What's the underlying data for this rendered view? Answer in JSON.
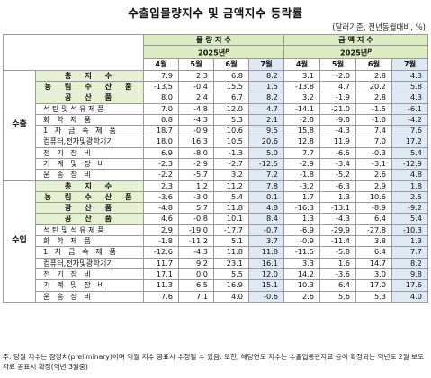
{
  "title": "수출입물량지수 및 금액지수 등락률",
  "unit": "(달러기준, 전년동월대비, %)",
  "headers": {
    "volume": "물 량 지 수",
    "value": "금 액 지 수",
    "year_label": "2025년",
    "year_sup": "p",
    "months": [
      "4월",
      "5월",
      "6월",
      "7월"
    ]
  },
  "sections": [
    {
      "name": "수출",
      "rows": [
        {
          "label": "총 지 수",
          "style": "bold",
          "vol": [
            "7.9",
            "2.3",
            "6.8",
            "8.2"
          ],
          "val": [
            "3.1",
            "-2.0",
            "2.8",
            "4.3"
          ]
        },
        {
          "label": "농 림 수 산 품",
          "style": "bold",
          "vol": [
            "-13.5",
            "-0.4",
            "15.5",
            "1.5"
          ],
          "val": [
            "-13.8",
            "4.7",
            "20.2",
            "5.8"
          ]
        },
        {
          "label": "공 산 품",
          "style": "bold",
          "vol": [
            "8.0",
            "2.4",
            "6.7",
            "8.2"
          ],
          "val": [
            "3.2",
            "-1.9",
            "2.8",
            "4.3"
          ]
        },
        {
          "label": "석탄및석유제품",
          "style": "item",
          "vol": [
            "7.0",
            "-4.8",
            "12.0",
            "4.7"
          ],
          "val": [
            "-14.1",
            "-21.0",
            "-1.5",
            "-6.1"
          ]
        },
        {
          "label": "화 학 제 품",
          "style": "item",
          "vol": [
            "0.8",
            "-4.3",
            "5.3",
            "2.1"
          ],
          "val": [
            "-2.8",
            "-9.8",
            "-1.0",
            "-4.2"
          ]
        },
        {
          "label": "1 차 금 속 제 품",
          "style": "item",
          "vol": [
            "18.7",
            "-0.9",
            "10.6",
            "9.5"
          ],
          "val": [
            "15.8",
            "-4.3",
            "7.4",
            "7.6"
          ]
        },
        {
          "label": "컴퓨터,전자및광학기기",
          "style": "wide",
          "vol": [
            "18.0",
            "16.3",
            "10.5",
            "20.6"
          ],
          "val": [
            "12.8",
            "11.9",
            "7.0",
            "17.2"
          ]
        },
        {
          "label": "전 기 장 비",
          "style": "item",
          "vol": [
            "6.9",
            "-8.0",
            "-1.3",
            "5.0"
          ],
          "val": [
            "7.7",
            "-6.5",
            "-0.3",
            "5.4"
          ]
        },
        {
          "label": "기 계 및 장 비",
          "style": "item",
          "vol": [
            "-2.3",
            "-2.9",
            "-2.7",
            "-12.5"
          ],
          "val": [
            "-2.9",
            "-3.4",
            "-3.1",
            "-12.9"
          ]
        },
        {
          "label": "운 송 장 비",
          "style": "item",
          "vol": [
            "-2.2",
            "-5.7",
            "3.2",
            "7.2"
          ],
          "val": [
            "-1.8",
            "-5.2",
            "2.6",
            "4.8"
          ]
        }
      ]
    },
    {
      "name": "수입",
      "rows": [
        {
          "label": "총 지 수",
          "style": "bold",
          "vol": [
            "2.3",
            "1.2",
            "11.2",
            "7.8"
          ],
          "val": [
            "-3.2",
            "-6.3",
            "2.9",
            "1.8"
          ]
        },
        {
          "label": "농 림 수 산 품",
          "style": "bold",
          "vol": [
            "-3.6",
            "-3.0",
            "5.4",
            "0.1"
          ],
          "val": [
            "1.7",
            "1.3",
            "10.6",
            "2.5"
          ]
        },
        {
          "label": "광 산 품",
          "style": "bold",
          "vol": [
            "-4.8",
            "5.7",
            "11.8",
            "4.8"
          ],
          "val": [
            "-16.3",
            "-13.1",
            "-8.9",
            "-9.2"
          ]
        },
        {
          "label": "공 산 품",
          "style": "bold",
          "vol": [
            "4.6",
            "-0.8",
            "10.1",
            "8.4"
          ],
          "val": [
            "1.3",
            "-4.3",
            "6.4",
            "5.4"
          ]
        },
        {
          "label": "석탄및석유제품",
          "style": "item",
          "vol": [
            "2.9",
            "-19.0",
            "-17.7",
            "-0.7"
          ],
          "val": [
            "-6.9",
            "-29.9",
            "-27.8",
            "-10.3"
          ]
        },
        {
          "label": "화 학 제 품",
          "style": "item",
          "vol": [
            "-1.8",
            "-11.2",
            "5.1",
            "3.7"
          ],
          "val": [
            "-0.9",
            "-11.4",
            "3.8",
            "1.3"
          ]
        },
        {
          "label": "1 차 금 속 제 품",
          "style": "item",
          "vol": [
            "-12.6",
            "-4.3",
            "11.8",
            "11.8"
          ],
          "val": [
            "-11.5",
            "-5.8",
            "6.4",
            "7.7"
          ]
        },
        {
          "label": "컴퓨터,전자및광학기기",
          "style": "wide",
          "vol": [
            "11.7",
            "9.2",
            "23.1",
            "16.1"
          ],
          "val": [
            "3.3",
            "1.6",
            "14.7",
            "8.2"
          ]
        },
        {
          "label": "전 기 장 비",
          "style": "item",
          "vol": [
            "17.1",
            "0.0",
            "5.5",
            "12.0"
          ],
          "val": [
            "14.2",
            "-3.6",
            "3.0",
            "9.8"
          ]
        },
        {
          "label": "기 계 및 장 비",
          "style": "item",
          "vol": [
            "11.3",
            "6.5",
            "16.9",
            "15.1"
          ],
          "val": [
            "10.3",
            "6.4",
            "17.0",
            "17.6"
          ]
        },
        {
          "label": "운 송 장 비",
          "style": "item",
          "vol": [
            "7.6",
            "7.1",
            "4.0",
            "-0.6"
          ],
          "val": [
            "2.6",
            "5.6",
            "5.3",
            "4.0"
          ]
        }
      ]
    }
  ],
  "note": "주: 당월 지수는 잠정치(preliminary)이며 익월 지수 공표시 수정될 수 있음. 또한, 해당연도 지수는 수출입통관자료 등이 확정되는 익년도 2월 보도자료 공표시 확정(익년 3월중)"
}
